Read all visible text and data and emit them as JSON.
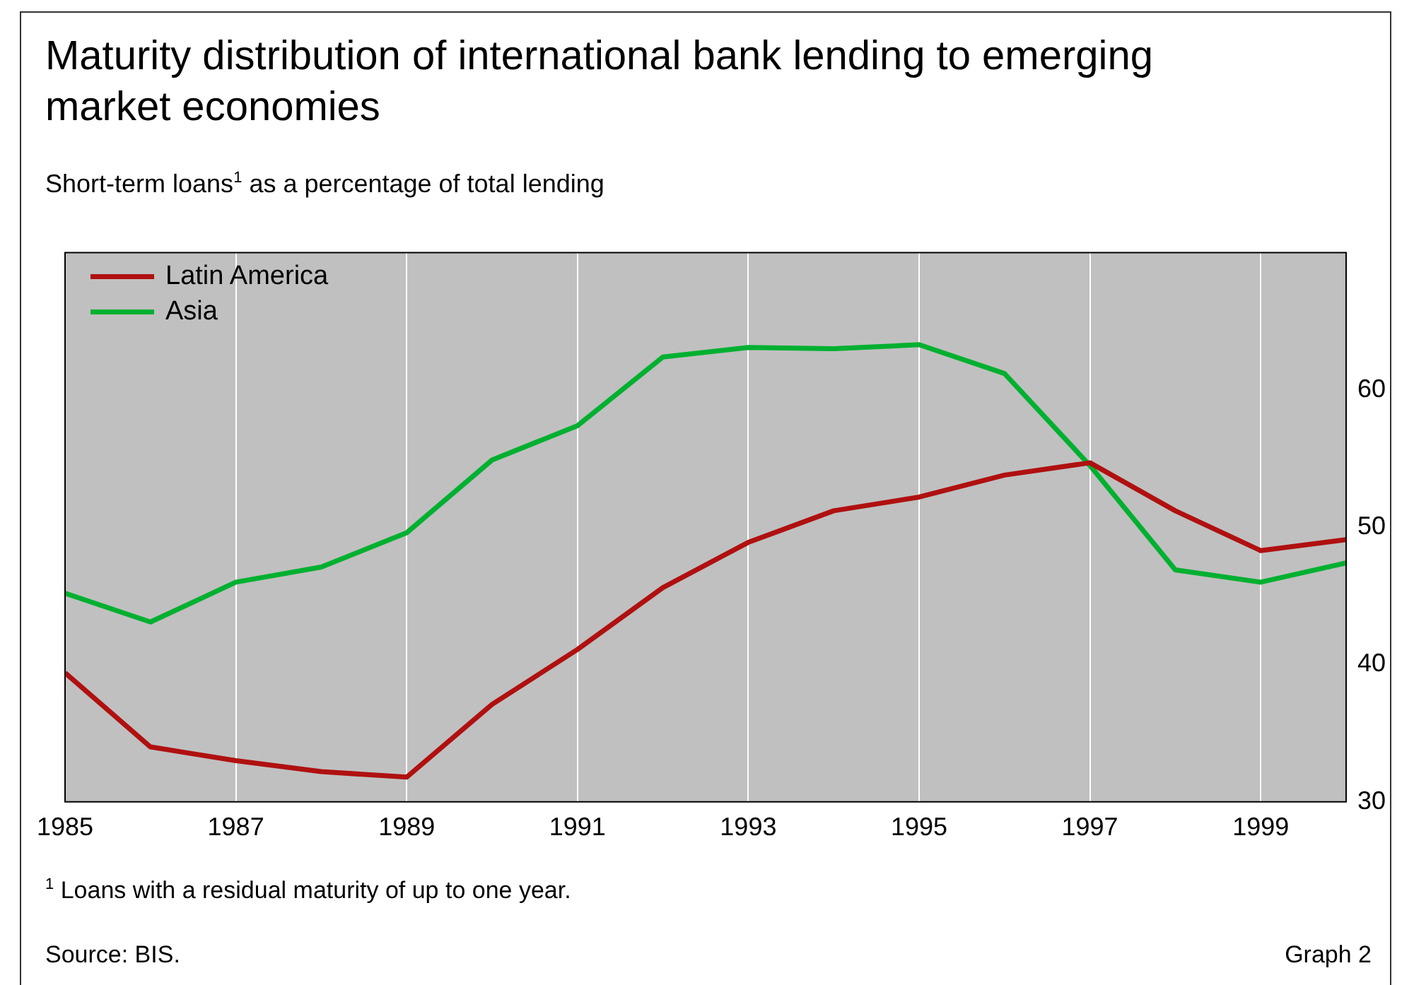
{
  "chart_data": {
    "type": "line",
    "title": "Maturity distribution of international bank lending to emerging market economies",
    "subtitle": "Short-term loans$^{1}$ as a percentage of total lending",
    "x": [
      1985,
      1986,
      1987,
      1988,
      1989,
      1990,
      1991,
      1992,
      1993,
      1994,
      1995,
      1996,
      1997,
      1998,
      1999,
      2000
    ],
    "series": [
      {
        "name": "Latin America",
        "color": "#b01010",
        "values": [
          39.4,
          34.0,
          33.0,
          32.2,
          31.8,
          37.1,
          41.1,
          45.6,
          48.9,
          51.2,
          52.2,
          53.8,
          54.7,
          51.2,
          48.3,
          49.1
        ]
      },
      {
        "name": "Asia",
        "color": "#00b030",
        "values": [
          45.2,
          43.1,
          46.0,
          47.1,
          49.6,
          54.9,
          57.4,
          62.4,
          63.1,
          63.0,
          63.3,
          61.2,
          54.5,
          46.9,
          46.0,
          47.4
        ]
      }
    ],
    "xlim": [
      1985,
      2000
    ],
    "xticks": [
      1985,
      1987,
      1989,
      1991,
      1993,
      1995,
      1997,
      1999
    ],
    "ylim": [
      30,
      70
    ],
    "yticks": [
      30,
      40,
      50,
      60
    ],
    "grid": "x",
    "legend": "top left",
    "marker": "none",
    "line_style": "solid",
    "annotations": [
      "$^{1}$ Loans with a residual maturity of up to one year.",
      "Source: BIS.",
      "Graph 2"
    ]
  }
}
